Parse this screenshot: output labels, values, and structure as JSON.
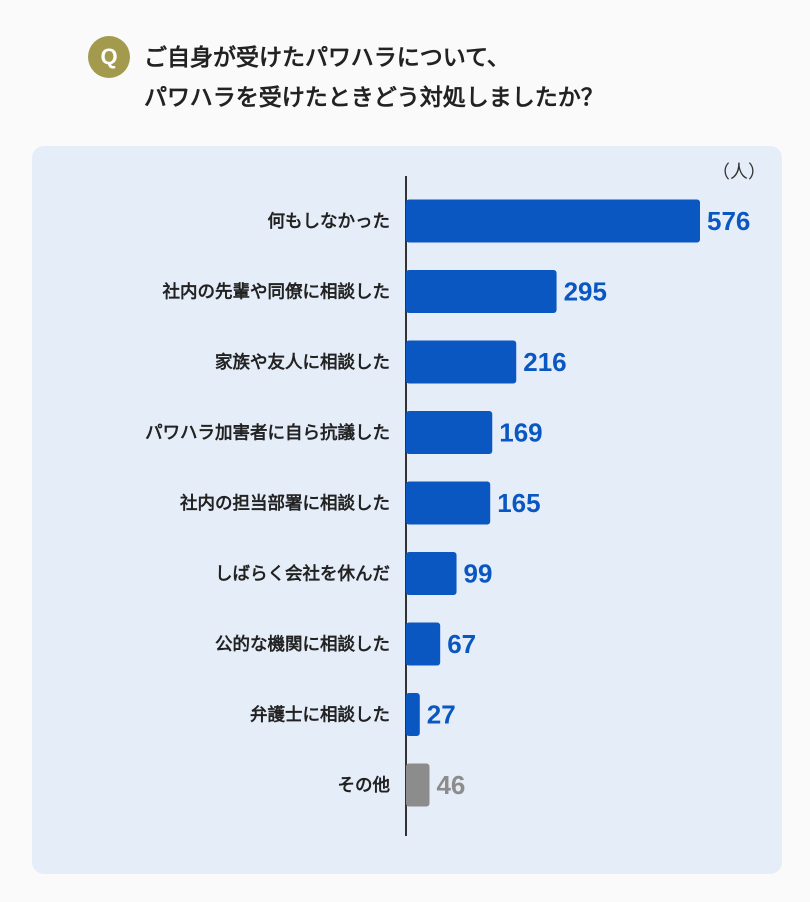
{
  "question": {
    "badge": "Q",
    "line1": "ご自身が受けたパワハラについて、",
    "line2": "パワハラを受けたときどう対処しましたか？"
  },
  "chart_data": {
    "type": "bar",
    "orientation": "horizontal",
    "unit": "（人）",
    "categories": [
      "何もしなかった",
      "社内の先輩や同僚に相談した",
      "家族や友人に相談した",
      "パワハラ加害者に自ら抗議した",
      "社内の担当部署に相談した",
      "しばらく会社を休んだ",
      "公的な機関に相談した",
      "弁護士に相談した",
      "その他"
    ],
    "values": [
      576,
      295,
      216,
      169,
      165,
      99,
      67,
      27,
      46
    ],
    "colors": {
      "primary": "#0a57c2",
      "other": "#8c8c8c",
      "primary_label": "#0a57c2",
      "other_label": "#8c8c8c",
      "axis": "#333333"
    },
    "grid": false
  }
}
